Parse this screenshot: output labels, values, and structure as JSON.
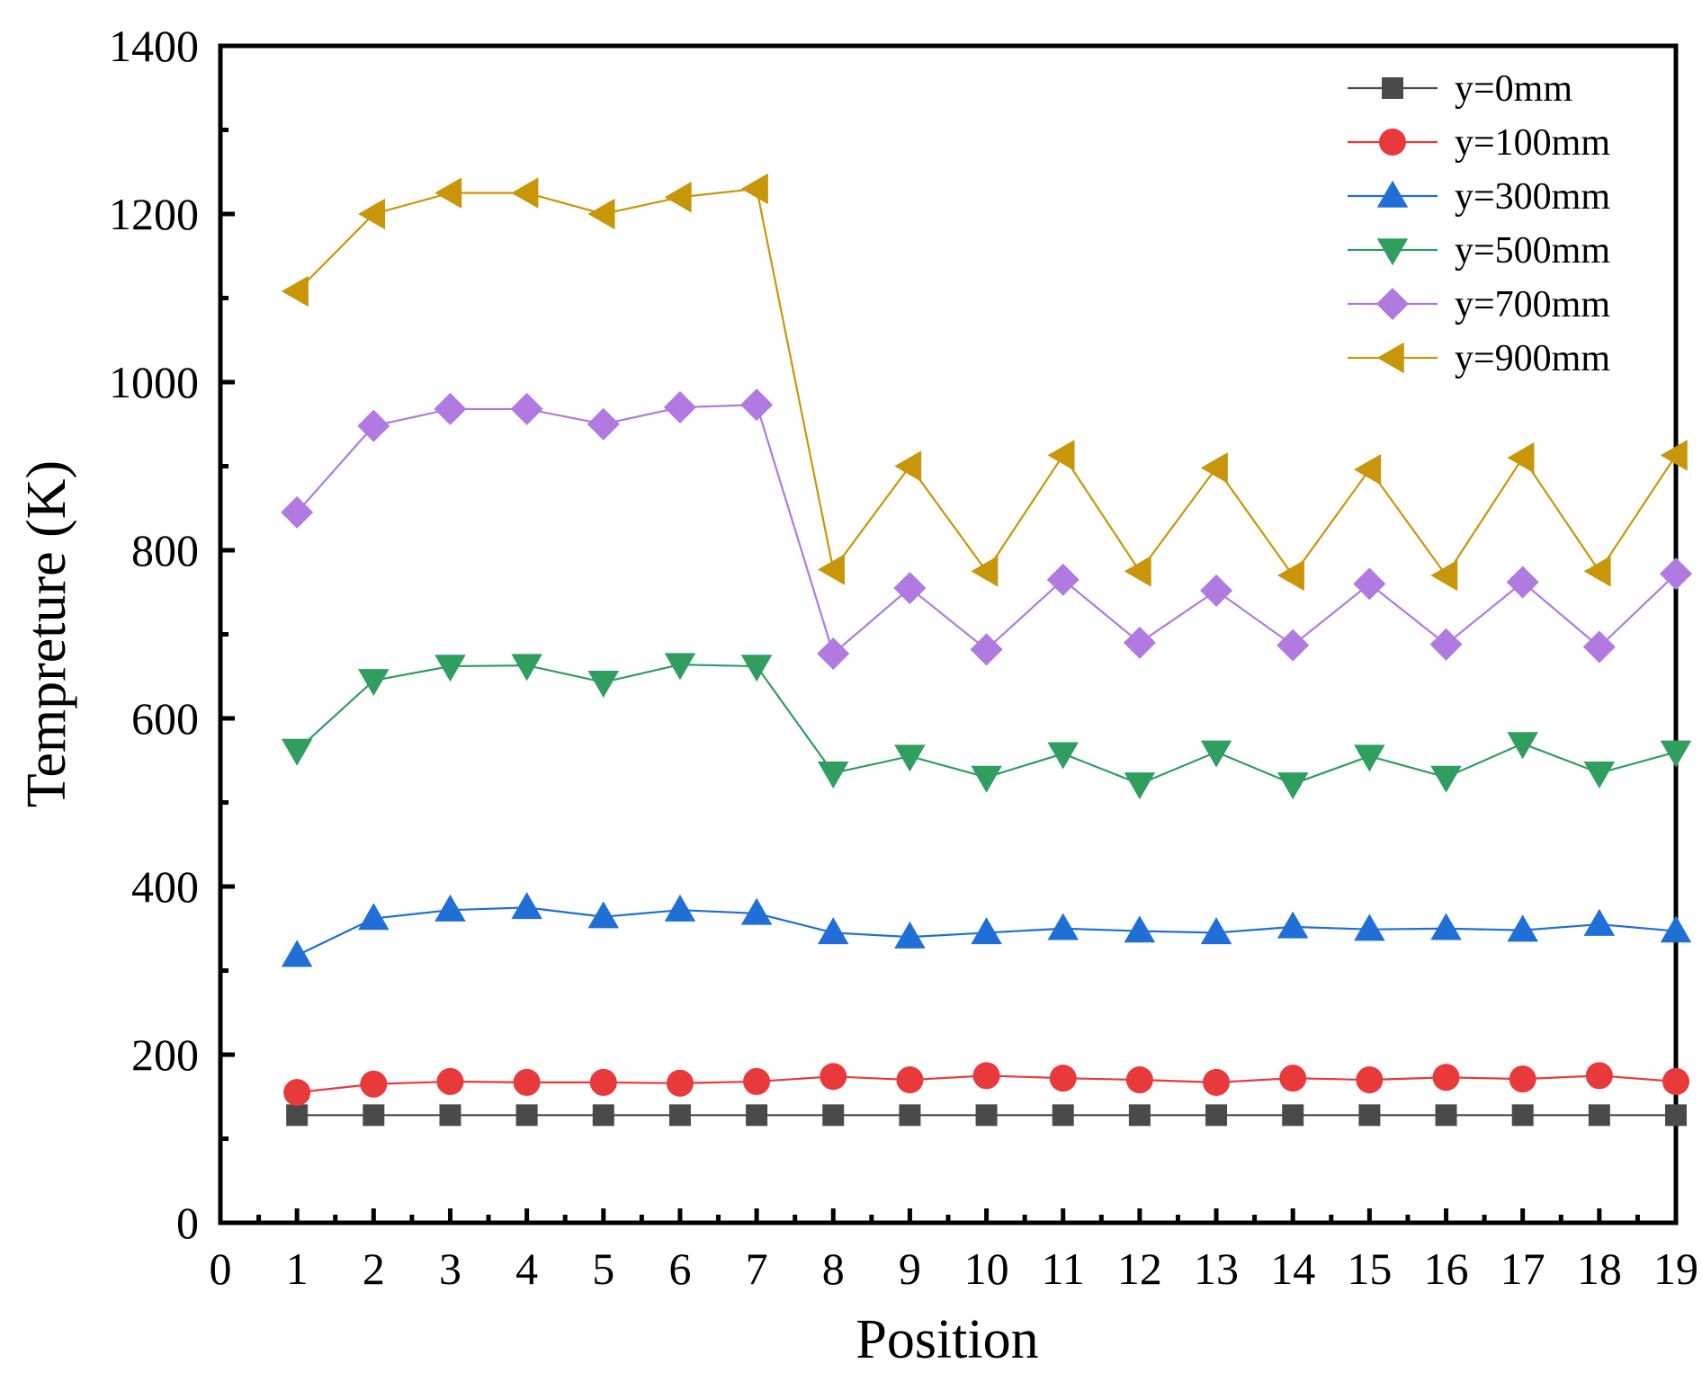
{
  "chart_data": {
    "type": "line",
    "title": "",
    "xlabel": "Position",
    "ylabel": "Tempreture (K)",
    "xlim": [
      0,
      19
    ],
    "ylim": [
      0,
      1400
    ],
    "xticks": [
      0,
      1,
      2,
      3,
      4,
      5,
      6,
      7,
      8,
      9,
      10,
      11,
      12,
      13,
      14,
      15,
      16,
      17,
      18,
      19
    ],
    "yticks": [
      0,
      200,
      400,
      600,
      800,
      1000,
      1200,
      1400
    ],
    "grid": false,
    "legend_position": "top-right",
    "x": [
      1,
      2,
      3,
      4,
      5,
      6,
      7,
      8,
      9,
      10,
      11,
      12,
      13,
      14,
      15,
      16,
      17,
      18,
      19
    ],
    "series": [
      {
        "name": "y=0mm",
        "color": "#4a4a4a",
        "marker": "square",
        "values": [
          128,
          128,
          128,
          128,
          128,
          128,
          128,
          128,
          128,
          128,
          128,
          128,
          128,
          128,
          128,
          128,
          128,
          128,
          128
        ]
      },
      {
        "name": "y=100mm",
        "color": "#e8393b",
        "marker": "circle",
        "values": [
          155,
          165,
          168,
          167,
          167,
          166,
          168,
          174,
          170,
          175,
          172,
          170,
          167,
          172,
          170,
          173,
          171,
          175,
          168
        ]
      },
      {
        "name": "y=300mm",
        "color": "#1f6fd6",
        "marker": "triangle-up",
        "values": [
          318,
          362,
          372,
          375,
          364,
          372,
          368,
          345,
          340,
          345,
          350,
          347,
          345,
          352,
          349,
          350,
          348,
          355,
          347
        ]
      },
      {
        "name": "y=500mm",
        "color": "#2f9e5f",
        "marker": "triangle-down",
        "values": [
          562,
          645,
          662,
          663,
          643,
          664,
          662,
          535,
          555,
          530,
          558,
          522,
          560,
          522,
          555,
          530,
          570,
          535,
          560
        ]
      },
      {
        "name": "y=700mm",
        "color": "#b07ae0",
        "marker": "diamond",
        "values": [
          845,
          948,
          968,
          968,
          950,
          970,
          973,
          677,
          755,
          682,
          765,
          690,
          752,
          687,
          760,
          688,
          762,
          685,
          772
        ]
      },
      {
        "name": "y=900mm",
        "color": "#c9960a",
        "marker": "triangle-left",
        "values": [
          1108,
          1200,
          1225,
          1225,
          1200,
          1220,
          1230,
          777,
          900,
          775,
          913,
          775,
          898,
          770,
          896,
          770,
          910,
          775,
          913
        ]
      }
    ]
  }
}
